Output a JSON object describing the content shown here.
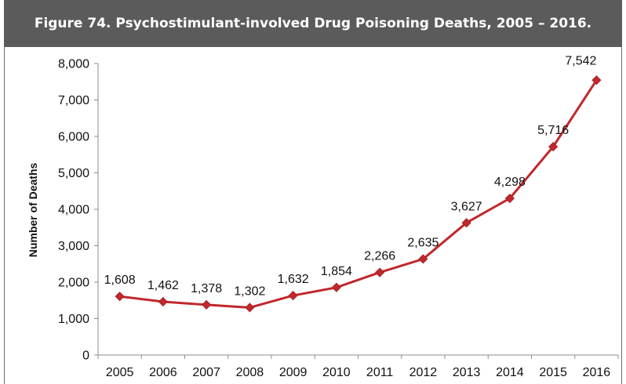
{
  "chart_data": {
    "type": "line",
    "title": "Figure 74. Psychostimulant-involved Drug Poisoning Deaths, 2005 – 2016.",
    "xlabel": "",
    "ylabel": "Number of Deaths",
    "categories": [
      "2005",
      "2006",
      "2007",
      "2008",
      "2009",
      "2010",
      "2011",
      "2012",
      "2013",
      "2014",
      "2015",
      "2016"
    ],
    "values": [
      1608,
      1462,
      1378,
      1302,
      1632,
      1854,
      2266,
      2635,
      3627,
      4298,
      5716,
      7542
    ],
    "data_labels": [
      "1,608",
      "1,462",
      "1,378",
      "1,302",
      "1,632",
      "1,854",
      "2,266",
      "2,635",
      "3,627",
      "4,298",
      "5,716",
      "7,542"
    ],
    "ylim": [
      0,
      8000
    ],
    "yticks": [
      0,
      1000,
      2000,
      3000,
      4000,
      5000,
      6000,
      7000,
      8000
    ],
    "ytick_labels": [
      "0",
      "1,000",
      "2,000",
      "3,000",
      "4,000",
      "5,000",
      "6,000",
      "7,000",
      "8,000"
    ],
    "grid": false,
    "legend": "none",
    "line_color": "#c0282d",
    "marker": "diamond"
  },
  "colors": {
    "title_bar": "#5b5b5b",
    "title_text": "#ffffff",
    "axis": "#8c8c8c"
  }
}
